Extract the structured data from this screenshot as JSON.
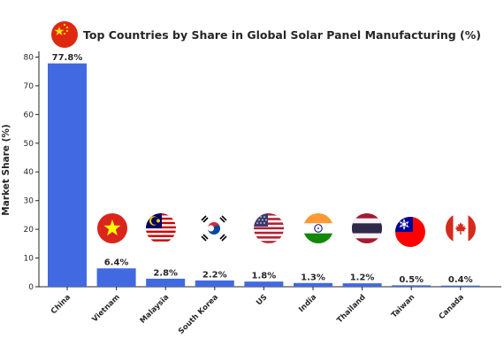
{
  "chart_data": {
    "type": "bar",
    "title": "Top Countries by Share in Global Solar Panel Manufacturing (%)",
    "xlabel": "",
    "ylabel": "Market Share (%)",
    "categories": [
      "China",
      "Vietnam",
      "Malaysia",
      "South Korea",
      "US",
      "India",
      "Thailand",
      "Taiwan",
      "Canada"
    ],
    "values": [
      77.8,
      6.4,
      2.8,
      2.2,
      1.8,
      1.3,
      1.2,
      0.5,
      0.4
    ],
    "value_labels": [
      "77.8%",
      "6.4%",
      "2.8%",
      "2.2%",
      "1.8%",
      "1.3%",
      "1.2%",
      "0.5%",
      "0.4%"
    ],
    "ylim": [
      0,
      82
    ],
    "yticks": [
      0,
      10,
      20,
      30,
      40,
      50,
      60,
      70,
      80
    ],
    "grid": false,
    "legend": "none",
    "bar_color": "#4169e1",
    "flag_icons": [
      "china-flag-icon",
      "vietnam-flag-icon",
      "malaysia-flag-icon",
      "south-korea-flag-icon",
      "us-flag-icon",
      "india-flag-icon",
      "thailand-flag-icon",
      "taiwan-flag-icon",
      "canada-flag-icon"
    ]
  }
}
